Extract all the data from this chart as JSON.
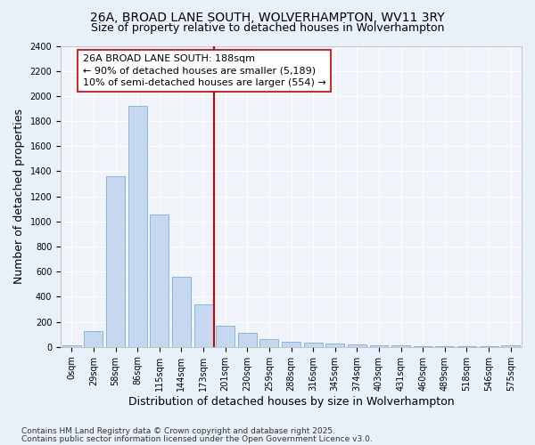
{
  "title": "26A, BROAD LANE SOUTH, WOLVERHAMPTON, WV11 3RY",
  "subtitle": "Size of property relative to detached houses in Wolverhampton",
  "xlabel": "Distribution of detached houses by size in Wolverhampton",
  "ylabel": "Number of detached properties",
  "bar_labels": [
    "0sqm",
    "29sqm",
    "58sqm",
    "86sqm",
    "115sqm",
    "144sqm",
    "173sqm",
    "201sqm",
    "230sqm",
    "259sqm",
    "288sqm",
    "316sqm",
    "345sqm",
    "374sqm",
    "403sqm",
    "431sqm",
    "460sqm",
    "489sqm",
    "518sqm",
    "546sqm",
    "575sqm"
  ],
  "bar_values": [
    10,
    125,
    1360,
    1920,
    1055,
    560,
    340,
    170,
    115,
    65,
    40,
    30,
    25,
    20,
    15,
    10,
    5,
    5,
    5,
    2,
    15
  ],
  "bar_color": "#c5d8f0",
  "bar_edgecolor": "#7aadd4",
  "vline_x_index": 7,
  "vline_color": "#cc0000",
  "ylim": [
    0,
    2400
  ],
  "yticks": [
    0,
    200,
    400,
    600,
    800,
    1000,
    1200,
    1400,
    1600,
    1800,
    2000,
    2200,
    2400
  ],
  "annotation_line1": "26A BROAD LANE SOUTH: 188sqm",
  "annotation_line2": "← 90% of detached houses are smaller (5,189)",
  "annotation_line3": "10% of semi-detached houses are larger (554) →",
  "annotation_box_edgecolor": "#cc0000",
  "footer1": "Contains HM Land Registry data © Crown copyright and database right 2025.",
  "footer2": "Contains public sector information licensed under the Open Government Licence v3.0.",
  "bg_color": "#e8f0f8",
  "plot_bg_color": "#f0f4fa",
  "grid_color": "#ffffff",
  "title_fontsize": 10,
  "subtitle_fontsize": 9,
  "axis_label_fontsize": 9,
  "tick_fontsize": 7,
  "annotation_fontsize": 8,
  "footer_fontsize": 6.5
}
